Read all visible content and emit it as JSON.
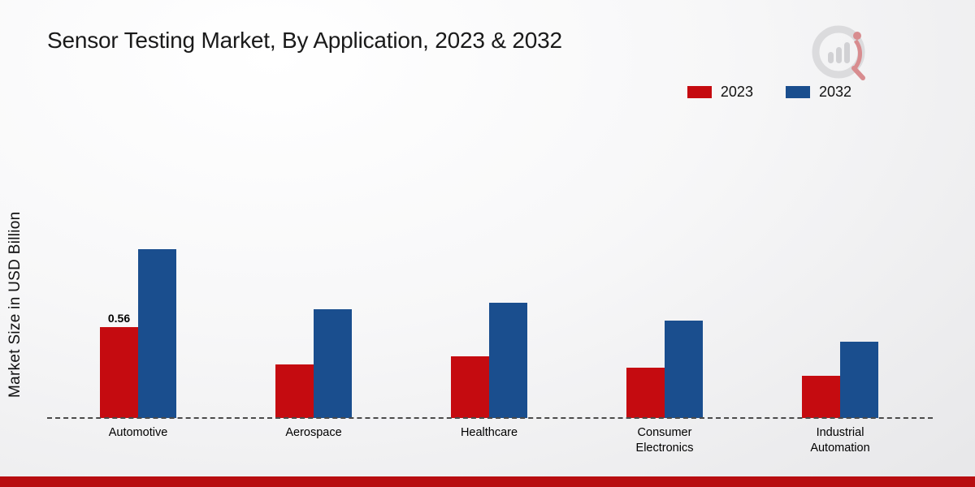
{
  "title": "Sensor Testing Market, By Application, 2023 & 2032",
  "y_axis_label": "Market Size in USD Billion",
  "accent_colors": {
    "series_2023": "#c50b10",
    "series_2032": "#1a4e8e",
    "footer_bar": "#b80d10"
  },
  "chart_data": {
    "type": "bar",
    "title": "Sensor Testing Market, By Application, 2023 & 2032",
    "xlabel": "",
    "ylabel": "Market Size in USD Billion",
    "categories": [
      "Automotive",
      "Aerospace",
      "Healthcare",
      "Consumer Electronics",
      "Industrial Automation"
    ],
    "series": [
      {
        "name": "2023",
        "color": "#c50b10",
        "values": [
          0.56,
          0.33,
          0.38,
          0.31,
          0.26
        ]
      },
      {
        "name": "2032",
        "color": "#1a4e8e",
        "values": [
          1.04,
          0.67,
          0.71,
          0.6,
          0.47
        ]
      }
    ],
    "ylim": [
      0,
      1.2
    ],
    "grid": false,
    "legend_position": "top-right",
    "baseline_style": "dashed",
    "data_labels": [
      {
        "series": "2023",
        "category": "Automotive",
        "text": "0.56"
      }
    ]
  }
}
